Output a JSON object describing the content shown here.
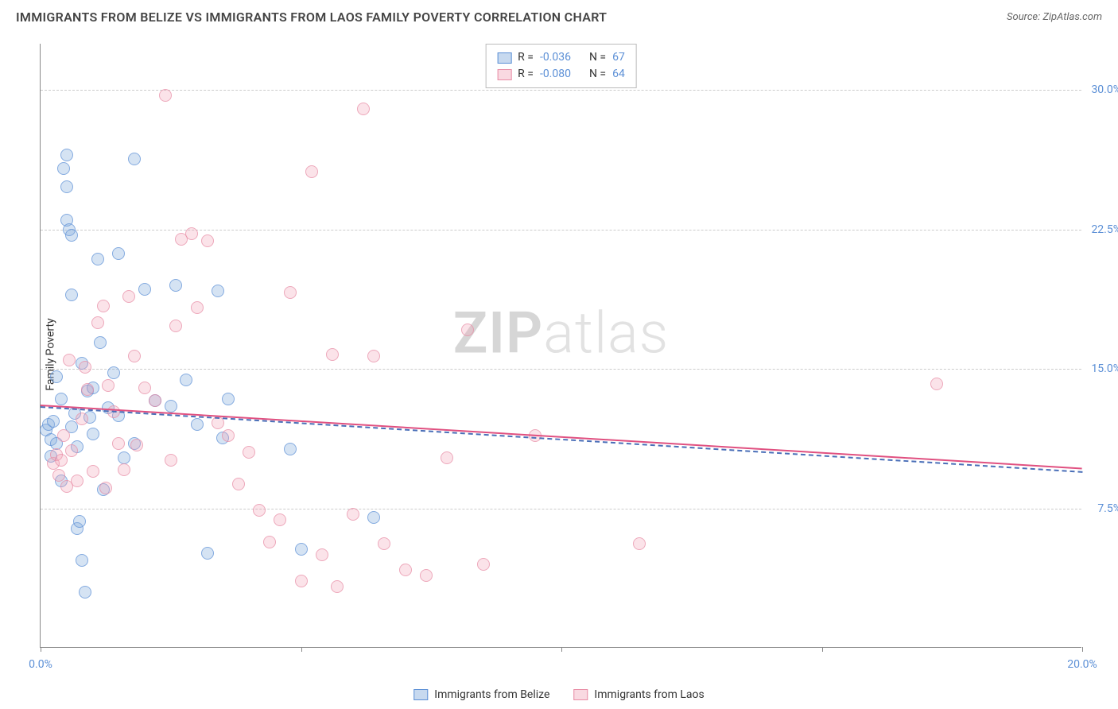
{
  "header": {
    "title": "IMMIGRANTS FROM BELIZE VS IMMIGRANTS FROM LAOS FAMILY POVERTY CORRELATION CHART",
    "source_prefix": "Source: ",
    "source_name": "ZipAtlas.com"
  },
  "watermark": {
    "part1": "ZIP",
    "part2": "atlas"
  },
  "chart": {
    "type": "scatter",
    "y_axis_label": "Family Poverty",
    "background_color": "#ffffff",
    "grid_color": "#cccccc",
    "axis_color": "#888888",
    "xlim": [
      0,
      20
    ],
    "ylim": [
      0,
      32.5
    ],
    "x_ticks": [
      {
        "pos": 0.0,
        "label": "0.0%"
      },
      {
        "pos": 5.0,
        "label": ""
      },
      {
        "pos": 10.0,
        "label": ""
      },
      {
        "pos": 15.0,
        "label": ""
      },
      {
        "pos": 20.0,
        "label": "20.0%"
      }
    ],
    "y_ticks": [
      {
        "pos": 7.5,
        "label": "7.5%"
      },
      {
        "pos": 15.0,
        "label": "15.0%"
      },
      {
        "pos": 22.5,
        "label": "22.5%"
      },
      {
        "pos": 30.0,
        "label": "30.0%"
      }
    ],
    "marker_radius": 8,
    "marker_opacity": 0.75,
    "series": [
      {
        "name": "Immigrants from Belize",
        "fill": "rgba(130,170,220,0.45)",
        "stroke": "#5b8fd6",
        "R_label": "R =",
        "R": "-0.036",
        "N_label": "N =",
        "N": "67",
        "regression": {
          "x1": 0,
          "y1": 13.0,
          "x2": 20,
          "y2": 9.5,
          "color": "#4a6fb8",
          "dash": true
        },
        "points": [
          [
            0.1,
            11.7
          ],
          [
            0.15,
            12.0
          ],
          [
            0.2,
            10.3
          ],
          [
            0.2,
            11.2
          ],
          [
            0.25,
            12.2
          ],
          [
            0.3,
            14.6
          ],
          [
            0.3,
            11.0
          ],
          [
            0.4,
            13.4
          ],
          [
            0.4,
            9.0
          ],
          [
            0.45,
            25.8
          ],
          [
            0.5,
            26.5
          ],
          [
            0.5,
            24.8
          ],
          [
            0.5,
            23.0
          ],
          [
            0.55,
            22.5
          ],
          [
            0.6,
            22.2
          ],
          [
            0.6,
            19.0
          ],
          [
            0.6,
            11.9
          ],
          [
            0.65,
            12.6
          ],
          [
            0.7,
            10.8
          ],
          [
            0.7,
            6.4
          ],
          [
            0.75,
            6.8
          ],
          [
            0.8,
            4.7
          ],
          [
            0.8,
            15.3
          ],
          [
            0.85,
            3.0
          ],
          [
            0.9,
            13.8
          ],
          [
            0.95,
            12.4
          ],
          [
            1.0,
            14.0
          ],
          [
            1.0,
            11.5
          ],
          [
            1.1,
            20.9
          ],
          [
            1.15,
            16.4
          ],
          [
            1.2,
            8.5
          ],
          [
            1.3,
            12.9
          ],
          [
            1.4,
            14.8
          ],
          [
            1.5,
            21.2
          ],
          [
            1.5,
            12.5
          ],
          [
            1.6,
            10.2
          ],
          [
            1.8,
            11.0
          ],
          [
            1.8,
            26.3
          ],
          [
            2.0,
            19.3
          ],
          [
            2.2,
            13.3
          ],
          [
            2.5,
            13.0
          ],
          [
            2.6,
            19.5
          ],
          [
            2.8,
            14.4
          ],
          [
            3.0,
            12.0
          ],
          [
            3.2,
            5.1
          ],
          [
            3.4,
            19.2
          ],
          [
            3.5,
            11.3
          ],
          [
            3.6,
            13.4
          ],
          [
            4.8,
            10.7
          ],
          [
            5.0,
            5.3
          ],
          [
            6.4,
            7.0
          ]
        ]
      },
      {
        "name": "Immigrants from Laos",
        "fill": "rgba(240,160,180,0.4)",
        "stroke": "#e88ca5",
        "R_label": "R =",
        "R": "-0.080",
        "N_label": "N =",
        "N": "64",
        "regression": {
          "x1": 0,
          "y1": 13.1,
          "x2": 20,
          "y2": 9.7,
          "color": "#e05080",
          "dash": false
        },
        "points": [
          [
            0.25,
            9.9
          ],
          [
            0.3,
            10.4
          ],
          [
            0.35,
            9.3
          ],
          [
            0.4,
            10.1
          ],
          [
            0.45,
            11.4
          ],
          [
            0.5,
            8.7
          ],
          [
            0.55,
            15.5
          ],
          [
            0.6,
            10.6
          ],
          [
            0.7,
            9.0
          ],
          [
            0.8,
            12.3
          ],
          [
            0.85,
            15.1
          ],
          [
            0.9,
            13.9
          ],
          [
            1.0,
            9.5
          ],
          [
            1.1,
            17.5
          ],
          [
            1.2,
            18.4
          ],
          [
            1.25,
            8.6
          ],
          [
            1.3,
            14.1
          ],
          [
            1.4,
            12.7
          ],
          [
            1.5,
            11.0
          ],
          [
            1.6,
            9.6
          ],
          [
            1.7,
            18.9
          ],
          [
            1.8,
            15.7
          ],
          [
            1.85,
            10.9
          ],
          [
            2.0,
            14.0
          ],
          [
            2.2,
            13.3
          ],
          [
            2.4,
            29.7
          ],
          [
            2.5,
            10.1
          ],
          [
            2.6,
            17.3
          ],
          [
            2.7,
            22.0
          ],
          [
            2.9,
            22.3
          ],
          [
            3.0,
            18.3
          ],
          [
            3.2,
            21.9
          ],
          [
            3.4,
            12.1
          ],
          [
            3.6,
            11.4
          ],
          [
            3.8,
            8.8
          ],
          [
            4.0,
            10.5
          ],
          [
            4.2,
            7.4
          ],
          [
            4.4,
            5.7
          ],
          [
            4.6,
            6.9
          ],
          [
            4.8,
            19.1
          ],
          [
            5.0,
            3.6
          ],
          [
            5.2,
            25.6
          ],
          [
            5.4,
            5.0
          ],
          [
            5.6,
            15.8
          ],
          [
            5.7,
            3.3
          ],
          [
            6.0,
            7.2
          ],
          [
            6.2,
            29.0
          ],
          [
            6.4,
            15.7
          ],
          [
            6.6,
            5.6
          ],
          [
            7.0,
            4.2
          ],
          [
            7.4,
            3.9
          ],
          [
            7.8,
            10.2
          ],
          [
            8.2,
            17.1
          ],
          [
            8.5,
            4.5
          ],
          [
            9.5,
            11.4
          ],
          [
            11.5,
            5.6
          ],
          [
            17.2,
            14.2
          ]
        ]
      }
    ]
  }
}
